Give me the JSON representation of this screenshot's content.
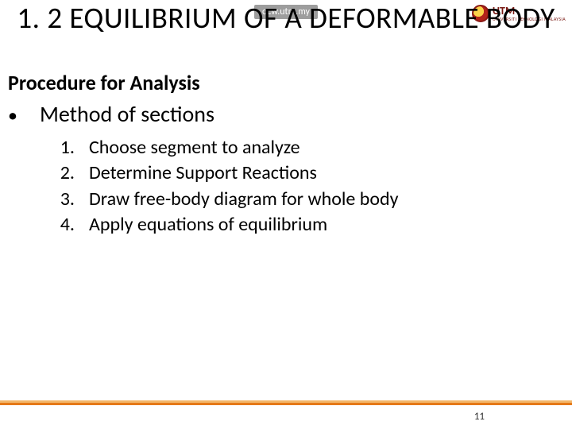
{
  "header": {
    "topbar_text": "ocw.utm.my",
    "logo": {
      "mark_name": "utm-logo",
      "line1": "UTM",
      "line2": "UNIVERSITI TEKNOLOGI MALAYSIA"
    }
  },
  "title": "1. 2 EQUILIBRIUM OF A DEFORMABLE BODY",
  "subheading": "Procedure for Analysis",
  "bullet": {
    "marker": "•",
    "text": "Method of sections"
  },
  "steps": [
    {
      "num": "1.",
      "text": "Choose segment to analyze"
    },
    {
      "num": "2.",
      "text": "Determine Support Reactions"
    },
    {
      "num": "3.",
      "text": "Draw free-body diagram for whole body"
    },
    {
      "num": "4.",
      "text": "Apply equations of equilibrium"
    }
  ],
  "footer": {
    "slide_number": "11",
    "line_color_top": "#f3b66a",
    "line_color_bottom": "#e57918"
  },
  "styling": {
    "background": "#ffffff",
    "title_fontsize": 37,
    "subheading_fontsize": 26,
    "bullet_fontsize": 28,
    "step_fontsize": 24,
    "slide_number_fontsize": 13
  }
}
